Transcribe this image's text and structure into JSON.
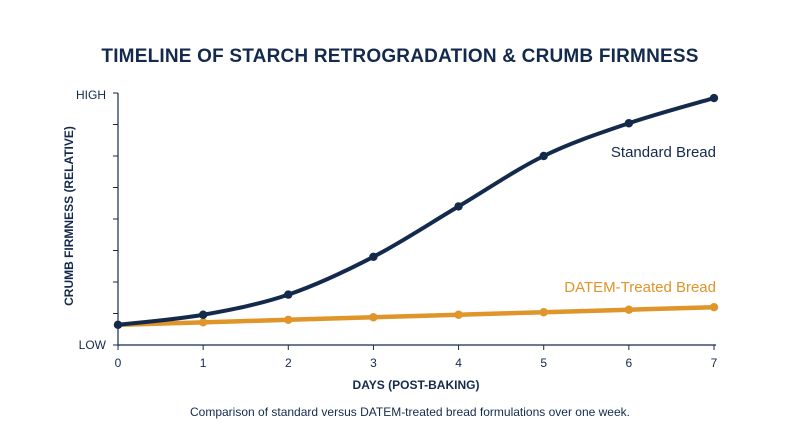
{
  "chart_data": {
    "type": "line",
    "title": "TIMELINE OF STARCH RETROGRADATION & CRUMB FIRMNESS",
    "xlabel": "DAYS (POST-BAKING)",
    "ylabel": "CRUMB FIRMNESS (RELATIVE)",
    "x": [
      0,
      1,
      2,
      3,
      4,
      5,
      6,
      7
    ],
    "xlim": [
      0,
      7
    ],
    "ylim": [
      0,
      100
    ],
    "y_tick_labels": {
      "high": "HIGH",
      "low": "LOW"
    },
    "series": [
      {
        "name": "Standard Bread",
        "color": "#142a4c",
        "values": [
          8,
          12,
          20,
          35,
          55,
          75,
          88,
          98
        ]
      },
      {
        "name": "DATEM-Treated Bread",
        "color": "#e0952a",
        "values": [
          8,
          9,
          10,
          11,
          12,
          13,
          14,
          15
        ]
      }
    ],
    "grid": false,
    "legend": "inline-labels",
    "caption": "Comparison of standard versus DATEM-treated bread formulations over one week."
  }
}
